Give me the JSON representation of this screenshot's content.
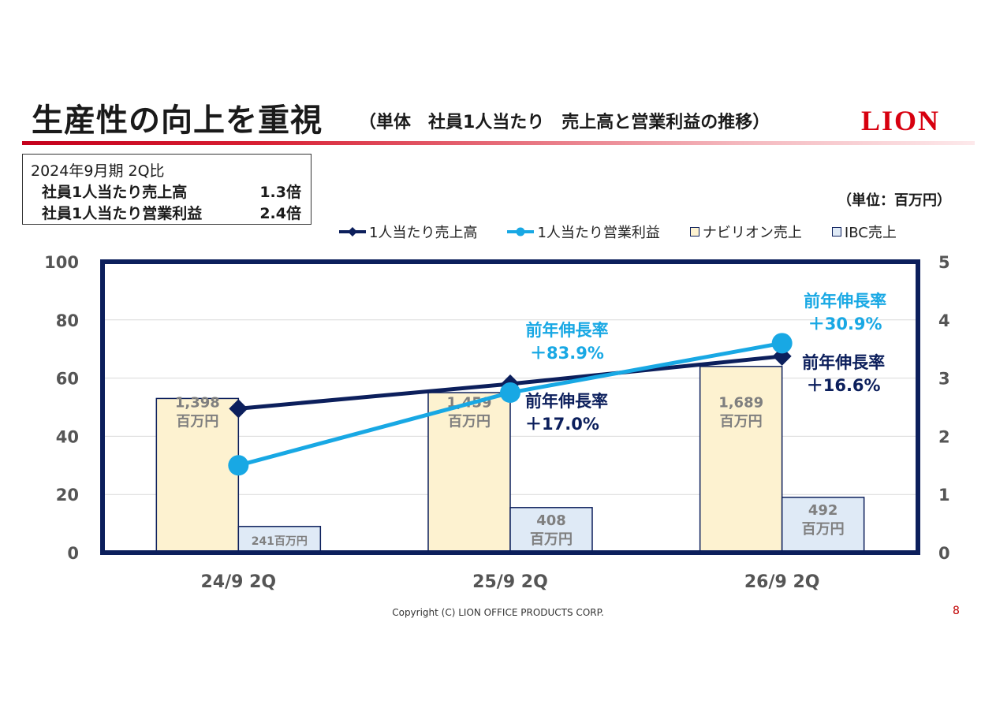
{
  "header": {
    "title": "生産性の向上を重視",
    "subtitle": "（単体　社員1人当たり　売上高と営業利益の推移）",
    "logo": "LION"
  },
  "summary": {
    "heading": "2024年9月期 2Q比",
    "rows": [
      {
        "label": "社員1人当たり売上高",
        "value": "1.3倍"
      },
      {
        "label": "社員1人当たり営業利益",
        "value": "2.4倍"
      }
    ]
  },
  "unit_label": "（単位：百万円）",
  "legend": [
    {
      "label": "1人当たり売上高",
      "icon": "diamond-line-icon",
      "color": "#0c1f5c"
    },
    {
      "label": "1人当たり営業利益",
      "icon": "circle-line-icon",
      "color": "#18a8e4"
    },
    {
      "label": "ナビリオン売上",
      "icon": "cream-square-icon",
      "color": "#fdf2d0"
    },
    {
      "label": "IBC売上",
      "icon": "lightblue-square-icon",
      "color": "#dfeaf6"
    }
  ],
  "chart_data": {
    "type": "bar",
    "categories": [
      "24/9 2Q",
      "25/9 2Q",
      "26/9 2Q"
    ],
    "y_left": {
      "range": [
        0,
        100
      ],
      "ticks": [
        "0",
        "20",
        "40",
        "60",
        "80",
        "100"
      ]
    },
    "y_right": {
      "range": [
        0,
        5
      ],
      "ticks": [
        "0",
        "1",
        "2",
        "3",
        "4",
        "5"
      ]
    },
    "grid": true,
    "series": [
      {
        "name": "ナビリオン売上",
        "kind": "bar",
        "axis": "left",
        "values": [
          53,
          55,
          64
        ],
        "labels": [
          [
            "1,398",
            "百万円"
          ],
          [
            "1,459",
            "百万円"
          ],
          [
            "1,689",
            "百万円"
          ]
        ],
        "fill": "#fdf2d0",
        "stroke": "#0c1f5c"
      },
      {
        "name": "IBC売上",
        "kind": "bar",
        "axis": "left",
        "values": [
          9,
          15.5,
          19
        ],
        "labels": [
          [
            "241百万円"
          ],
          [
            "408",
            "百万円"
          ],
          [
            "492",
            "百万円"
          ]
        ],
        "fill": "#dfeaf6",
        "stroke": "#0c1f5c"
      },
      {
        "name": "1人当たり売上高",
        "kind": "line",
        "axis": "left",
        "marker": "diamond",
        "values": [
          49.5,
          58,
          67.5
        ],
        "color": "#0c1f5c"
      },
      {
        "name": "1人当たり営業利益",
        "kind": "line",
        "axis": "left",
        "marker": "circle",
        "values": [
          30,
          55,
          72
        ],
        "color": "#18a8e4"
      }
    ],
    "annotations": [
      {
        "lines": [
          "前年伸長率",
          "＋83.9%"
        ],
        "color": "#18a8e4",
        "category": "25/9 2Q",
        "anchor": "above-line"
      },
      {
        "lines": [
          "前年伸長率",
          "＋17.0%"
        ],
        "color": "#0c1f5c",
        "category": "25/9 2Q",
        "anchor": "below-line"
      },
      {
        "lines": [
          "前年伸長率",
          "＋30.9%"
        ],
        "color": "#18a8e4",
        "category": "26/9 2Q",
        "anchor": "above-line"
      },
      {
        "lines": [
          "前年伸長率",
          "＋16.6%"
        ],
        "color": "#0c1f5c",
        "category": "26/9 2Q",
        "anchor": "below-line"
      }
    ]
  },
  "footer": {
    "copyright": "Copyright (C) LION OFFICE PRODUCTS CORP.",
    "page_number": "8"
  }
}
